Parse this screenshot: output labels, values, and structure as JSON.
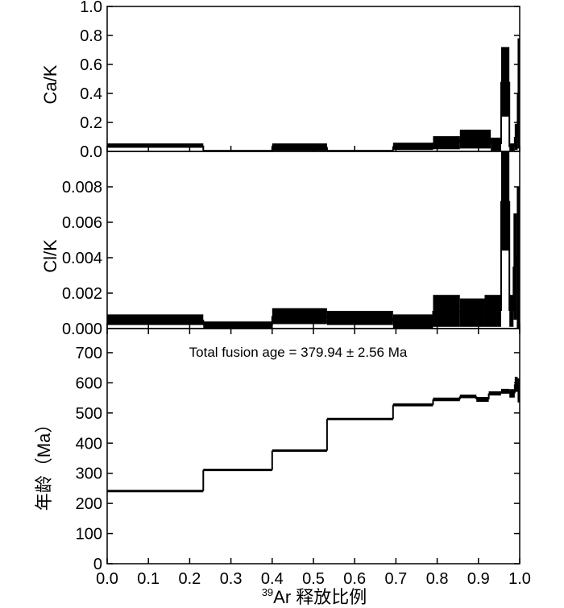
{
  "chart_data": [
    {
      "type": "step",
      "panel": "top",
      "ylabel": "Ca/K",
      "ylim": [
        0,
        1.0
      ],
      "yticks": [
        0.0,
        0.2,
        0.4,
        0.6,
        0.8,
        1.0
      ],
      "ytick_labels": [
        "0.0",
        "0.2",
        "0.4",
        "0.6",
        "0.8",
        "1.0"
      ],
      "steps": [
        {
          "x0": 0.0,
          "x1": 0.233,
          "center": 0.04,
          "error": 0.015
        },
        {
          "x0": 0.233,
          "x1": 0.4,
          "center": 0.006,
          "error": 0.004
        },
        {
          "x0": 0.4,
          "x1": 0.533,
          "center": 0.03,
          "error": 0.025
        },
        {
          "x0": 0.533,
          "x1": 0.693,
          "center": 0.006,
          "error": 0.004
        },
        {
          "x0": 0.693,
          "x1": 0.79,
          "center": 0.035,
          "error": 0.025
        },
        {
          "x0": 0.79,
          "x1": 0.855,
          "center": 0.06,
          "error": 0.045
        },
        {
          "x0": 0.855,
          "x1": 0.93,
          "center": 0.085,
          "error": 0.065
        },
        {
          "x0": 0.93,
          "x1": 0.955,
          "center": 0.05,
          "error": 0.045
        },
        {
          "x0": 0.955,
          "x1": 0.975,
          "center": 0.48,
          "error": 0.24
        },
        {
          "x0": 0.975,
          "x1": 0.988,
          "center": 0.03,
          "error": 0.025
        },
        {
          "x0": 0.988,
          "x1": 0.995,
          "center": 0.1,
          "error": 0.09
        },
        {
          "x0": 0.995,
          "x1": 1.0,
          "center": 0.4,
          "error": 0.38
        }
      ]
    },
    {
      "type": "step",
      "panel": "middle",
      "ylabel": "Cl/K",
      "ylim": [
        0,
        0.01
      ],
      "yticks": [
        0.0,
        0.002,
        0.004,
        0.006,
        0.008
      ],
      "ytick_labels": [
        "0.000",
        "0.002",
        "0.004",
        "0.006",
        "0.008"
      ],
      "steps": [
        {
          "x0": 0.0,
          "x1": 0.233,
          "center": 0.0005,
          "error": 0.0003
        },
        {
          "x0": 0.233,
          "x1": 0.4,
          "center": 0.0002,
          "error": 0.0002
        },
        {
          "x0": 0.4,
          "x1": 0.533,
          "center": 0.0007,
          "error": 0.00045
        },
        {
          "x0": 0.533,
          "x1": 0.693,
          "center": 0.0006,
          "error": 0.0004
        },
        {
          "x0": 0.693,
          "x1": 0.79,
          "center": 0.0004,
          "error": 0.0004
        },
        {
          "x0": 0.79,
          "x1": 0.855,
          "center": 0.001,
          "error": 0.0009
        },
        {
          "x0": 0.855,
          "x1": 0.915,
          "center": 0.0009,
          "error": 0.0008
        },
        {
          "x0": 0.915,
          "x1": 0.955,
          "center": 0.001,
          "error": 0.0009
        },
        {
          "x0": 0.955,
          "x1": 0.975,
          "center": 0.0072,
          "error": 0.0028
        },
        {
          "x0": 0.975,
          "x1": 0.985,
          "center": 0.001,
          "error": 0.0009
        },
        {
          "x0": 0.985,
          "x1": 0.993,
          "center": 0.0035,
          "error": 0.003
        },
        {
          "x0": 0.993,
          "x1": 1.0,
          "center": 0.004,
          "error": 0.004
        }
      ]
    },
    {
      "type": "step",
      "panel": "bottom",
      "ylabel": "年龄（Ma）",
      "xlabel": "³⁹Ar 释放比例",
      "xlabel_sup": "39",
      "xlabel_main": "Ar 释放比例",
      "xlim": [
        0.0,
        1.0
      ],
      "ylim": [
        0,
        780
      ],
      "xticks": [
        0.0,
        0.1,
        0.2,
        0.3,
        0.4,
        0.5,
        0.6,
        0.7,
        0.8,
        0.9,
        1.0
      ],
      "xtick_labels": [
        "0.0",
        "0.1",
        "0.2",
        "0.3",
        "0.4",
        "0.5",
        "0.6",
        "0.7",
        "0.8",
        "0.9",
        "1.0"
      ],
      "yticks": [
        0,
        100,
        200,
        300,
        400,
        500,
        600,
        700
      ],
      "ytick_labels": [
        "0",
        "100",
        "200",
        "300",
        "400",
        "500",
        "600",
        "700"
      ],
      "annotation": "Total fusion age = 379.94 ± 2.56 Ma",
      "steps": [
        {
          "x0": 0.0,
          "x1": 0.233,
          "center": 241,
          "error": 4
        },
        {
          "x0": 0.233,
          "x1": 0.4,
          "center": 311,
          "error": 4
        },
        {
          "x0": 0.4,
          "x1": 0.533,
          "center": 375,
          "error": 4
        },
        {
          "x0": 0.533,
          "x1": 0.693,
          "center": 480,
          "error": 4
        },
        {
          "x0": 0.693,
          "x1": 0.79,
          "center": 527,
          "error": 5
        },
        {
          "x0": 0.79,
          "x1": 0.855,
          "center": 545,
          "error": 6
        },
        {
          "x0": 0.855,
          "x1": 0.895,
          "center": 555,
          "error": 6
        },
        {
          "x0": 0.895,
          "x1": 0.925,
          "center": 545,
          "error": 8
        },
        {
          "x0": 0.925,
          "x1": 0.955,
          "center": 565,
          "error": 7
        },
        {
          "x0": 0.955,
          "x1": 0.975,
          "center": 572,
          "error": 8
        },
        {
          "x0": 0.975,
          "x1": 0.988,
          "center": 565,
          "error": 14
        },
        {
          "x0": 0.988,
          "x1": 0.995,
          "center": 595,
          "error": 25
        },
        {
          "x0": 0.995,
          "x1": 1.0,
          "center": 575,
          "error": 40
        }
      ]
    }
  ]
}
